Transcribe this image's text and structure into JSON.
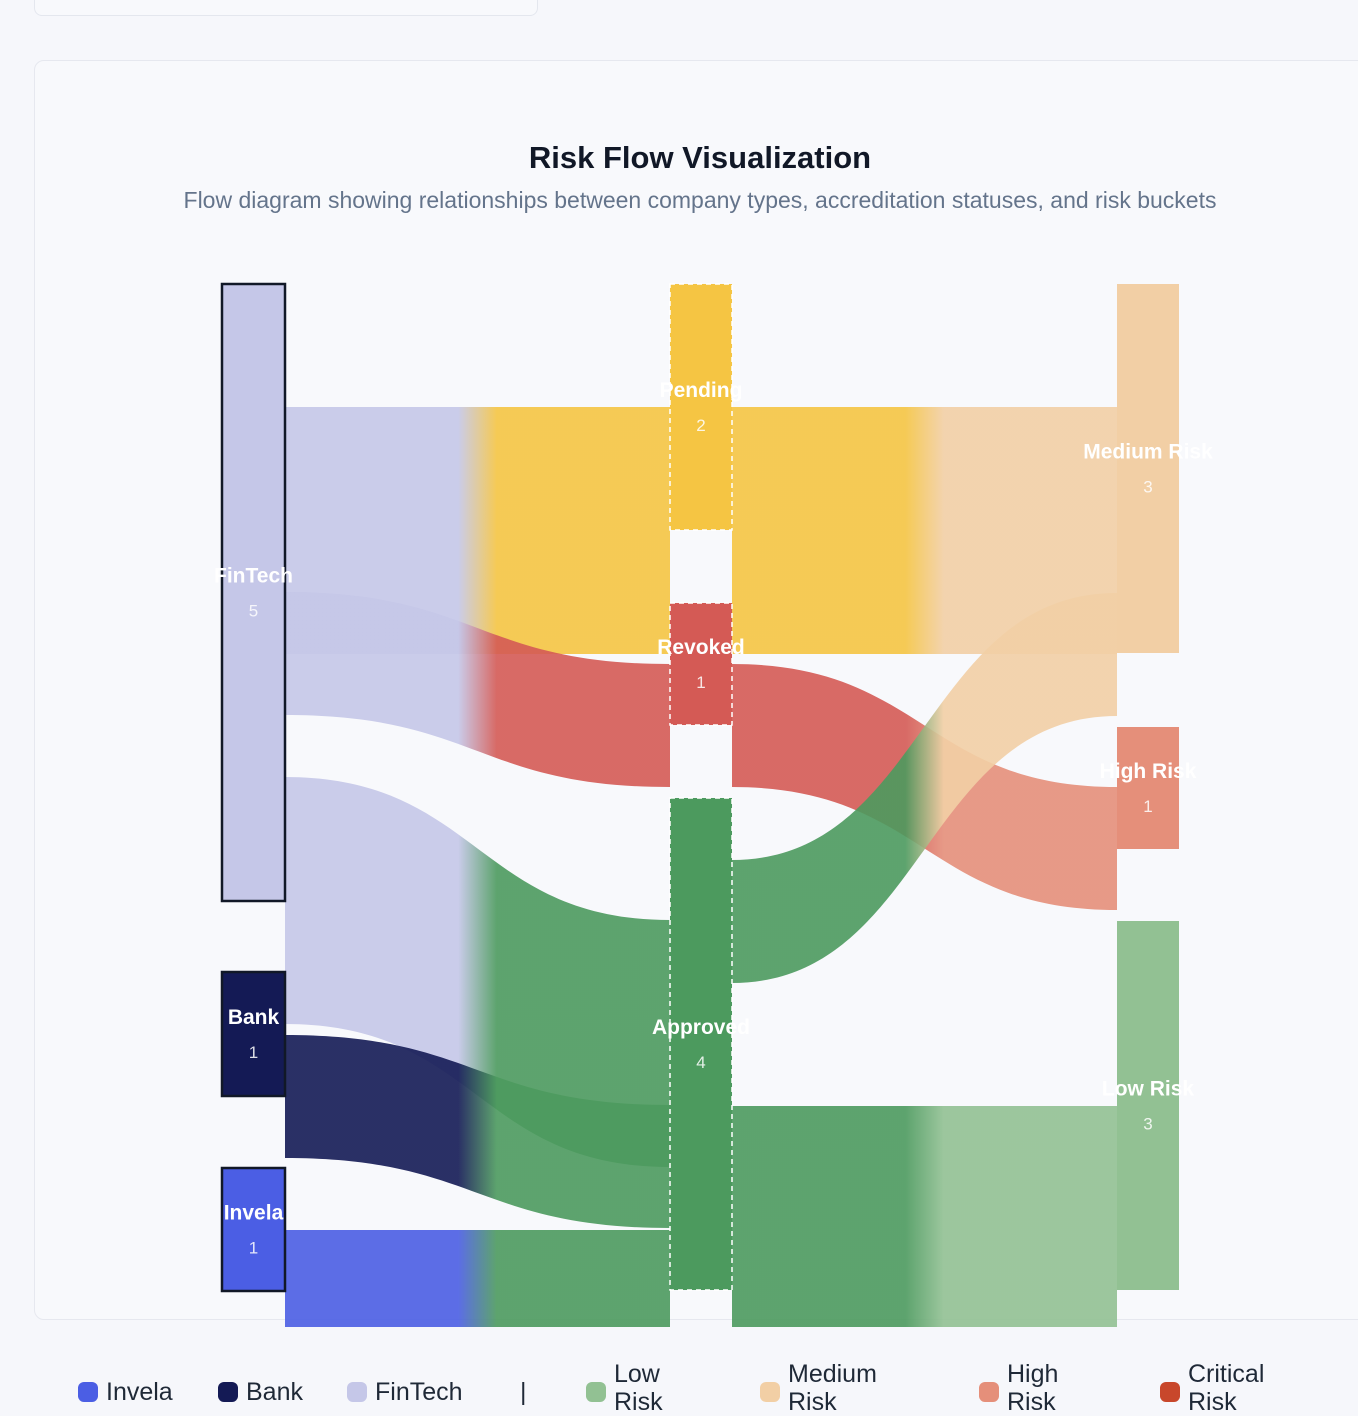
{
  "header": {
    "title": "Risk Flow Visualization",
    "subtitle": "Flow diagram showing relationships between company types, accreditation statuses, and risk buckets"
  },
  "nodes": [
    {
      "id": "fintech",
      "label": "FinTech",
      "count": "5",
      "color": "#c5c7e8",
      "column": 0
    },
    {
      "id": "bank",
      "label": "Bank",
      "count": "1",
      "color": "#141a55",
      "column": 0
    },
    {
      "id": "invela",
      "label": "Invela",
      "count": "1",
      "color": "#4b5ee4",
      "column": 0
    },
    {
      "id": "pending",
      "label": "Pending",
      "count": "2",
      "color": "#f5c543",
      "column": 1
    },
    {
      "id": "revoked",
      "label": "Revoked",
      "count": "1",
      "color": "#d45a55",
      "column": 1
    },
    {
      "id": "approved",
      "label": "Approved",
      "count": "4",
      "color": "#4c9a5e",
      "column": 1
    },
    {
      "id": "medium",
      "label": "Medium Risk",
      "count": "3",
      "color": "#f2cfa5",
      "column": 2
    },
    {
      "id": "high",
      "label": "High Risk",
      "count": "1",
      "color": "#e58f7a",
      "column": 2
    },
    {
      "id": "low",
      "label": "Low Risk",
      "count": "3",
      "color": "#92c193",
      "column": 2
    }
  ],
  "links": [
    {
      "source": "fintech",
      "target": "pending",
      "value": 2
    },
    {
      "source": "fintech",
      "target": "revoked",
      "value": 1
    },
    {
      "source": "fintech",
      "target": "approved",
      "value": 2
    },
    {
      "source": "bank",
      "target": "approved",
      "value": 1
    },
    {
      "source": "invela",
      "target": "approved",
      "value": 1
    },
    {
      "source": "pending",
      "target": "medium",
      "value": 2
    },
    {
      "source": "revoked",
      "target": "high",
      "value": 1
    },
    {
      "source": "approved",
      "target": "medium",
      "value": 1
    },
    {
      "source": "approved",
      "target": "low",
      "value": 3
    }
  ],
  "legend": {
    "companies": [
      {
        "label": "Invela",
        "color": "#4b5ee4"
      },
      {
        "label": "Bank",
        "color": "#141a55"
      },
      {
        "label": "FinTech",
        "color": "#c5c7e8"
      }
    ],
    "separator": "|",
    "risks": [
      {
        "label": "Low Risk",
        "color": "#92c193"
      },
      {
        "label": "Medium Risk",
        "color": "#f2cfa5"
      },
      {
        "label": "High Risk",
        "color": "#e58f7a"
      },
      {
        "label": "Critical Risk",
        "color": "#c8472b"
      }
    ]
  }
}
